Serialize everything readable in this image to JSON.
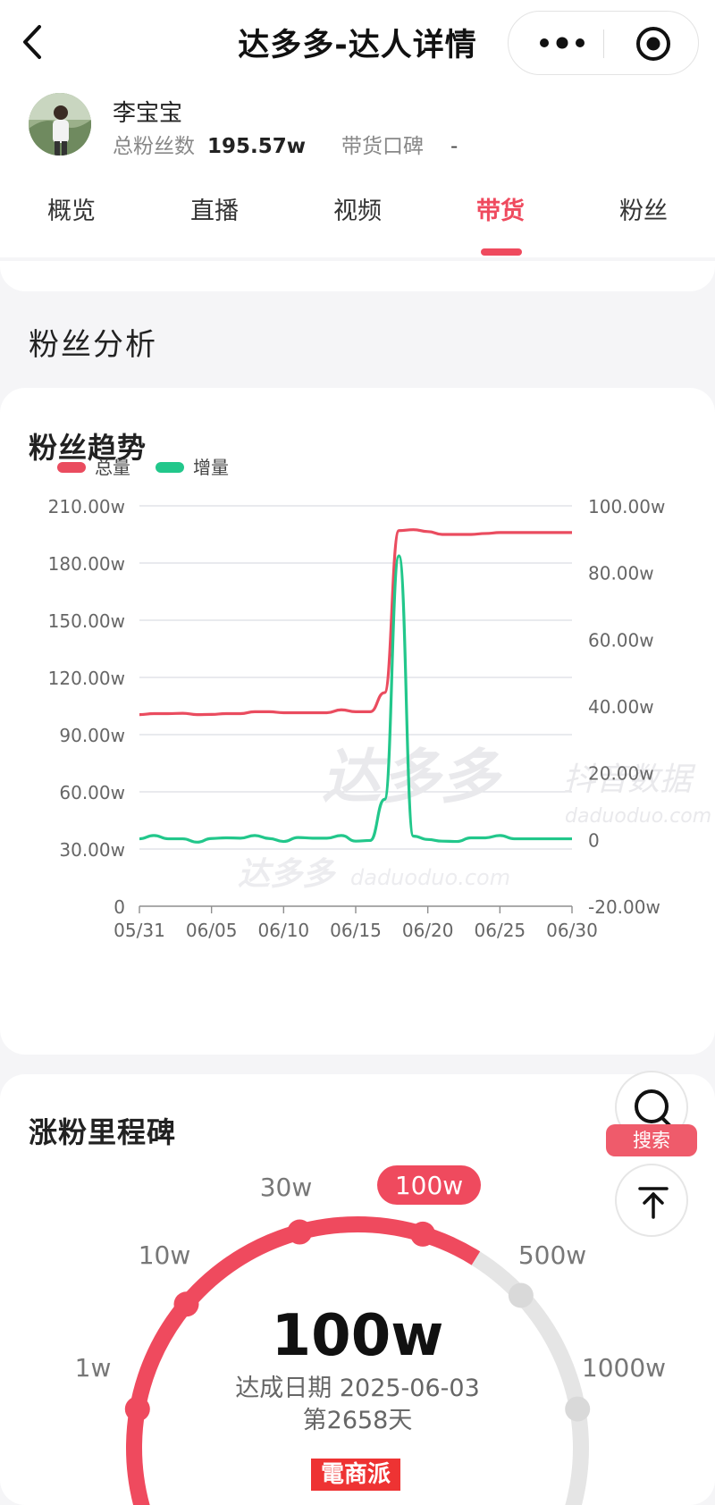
{
  "header": {
    "title": "达多多-达人详情"
  },
  "profile": {
    "name": "李宝宝",
    "fans_label": "总粉丝数",
    "fans_value": "195.57w",
    "rep_label": "带货口碑",
    "rep_value": "-"
  },
  "tabs": [
    {
      "label": "概览"
    },
    {
      "label": "直播"
    },
    {
      "label": "视频"
    },
    {
      "label": "带货",
      "active": true
    },
    {
      "label": "粉丝"
    }
  ],
  "section_title": "粉丝分析",
  "fans_trend": {
    "title": "粉丝趋势",
    "watermark_main": "达多多",
    "watermark_sub": "抖音数据",
    "watermark_url": "daduoduo.com",
    "watermark2_main": "达多多",
    "watermark2_url": "daduoduo.com"
  },
  "chart_data": {
    "type": "line",
    "legend_position": "top-left",
    "legend": [
      "总量",
      "增量"
    ],
    "colors": {
      "总量": "#ea4c5f",
      "增量": "#22c78b"
    },
    "x_tick_labels": [
      "05/31",
      "06/05",
      "06/10",
      "06/15",
      "06/20",
      "06/25",
      "06/30"
    ],
    "y_left_ticks": [
      "210.00w",
      "180.00w",
      "150.00w",
      "120.00w",
      "90.00w",
      "60.00w",
      "30.00w",
      "0"
    ],
    "y_right_ticks": [
      "100.00w",
      "80.00w",
      "60.00w",
      "40.00w",
      "20.00w",
      "0",
      "-20.00w"
    ],
    "y_left_range": [
      0,
      210
    ],
    "y_right_range": [
      -20,
      100
    ],
    "grid": true,
    "series": [
      {
        "name": "总量",
        "axis": "left",
        "values": [
          100.5,
          101,
          101,
          101.2,
          100.5,
          100.6,
          101,
          101,
          102,
          102,
          101.5,
          101.5,
          101.5,
          101.5,
          103,
          102,
          102,
          112,
          197,
          197.5,
          196.5,
          195,
          195,
          195,
          195.5,
          196,
          196,
          196,
          196,
          196,
          196
        ]
      },
      {
        "name": "增量",
        "axis": "right",
        "values": [
          0.2,
          1.2,
          0.2,
          0.2,
          -0.8,
          0.3,
          0.5,
          0.4,
          1.2,
          0.3,
          -0.6,
          0.6,
          0.4,
          0.4,
          1.2,
          -0.5,
          -0.3,
          12,
          85,
          1,
          0,
          -0.5,
          -0.6,
          0.5,
          0.5,
          1.2,
          0.2,
          0.2,
          0.2,
          0.2,
          0.2
        ]
      }
    ]
  },
  "milestones": {
    "title": "涨粉里程碑",
    "center_value": "100w",
    "date_text": "达成日期 2025-06-03",
    "days_text": "第2658天",
    "achieved_color": "#ef4a5e",
    "pending_color": "#e5e5e5",
    "items": [
      {
        "label": "1w",
        "achieved": true
      },
      {
        "label": "10w",
        "achieved": true
      },
      {
        "label": "30w",
        "achieved": true
      },
      {
        "label": "100w",
        "achieved": true,
        "current": true
      },
      {
        "label": "500w",
        "achieved": false
      },
      {
        "label": "1000w",
        "achieved": false
      }
    ]
  },
  "float": {
    "search_label": "搜索"
  },
  "watermark_logo": "電商派"
}
